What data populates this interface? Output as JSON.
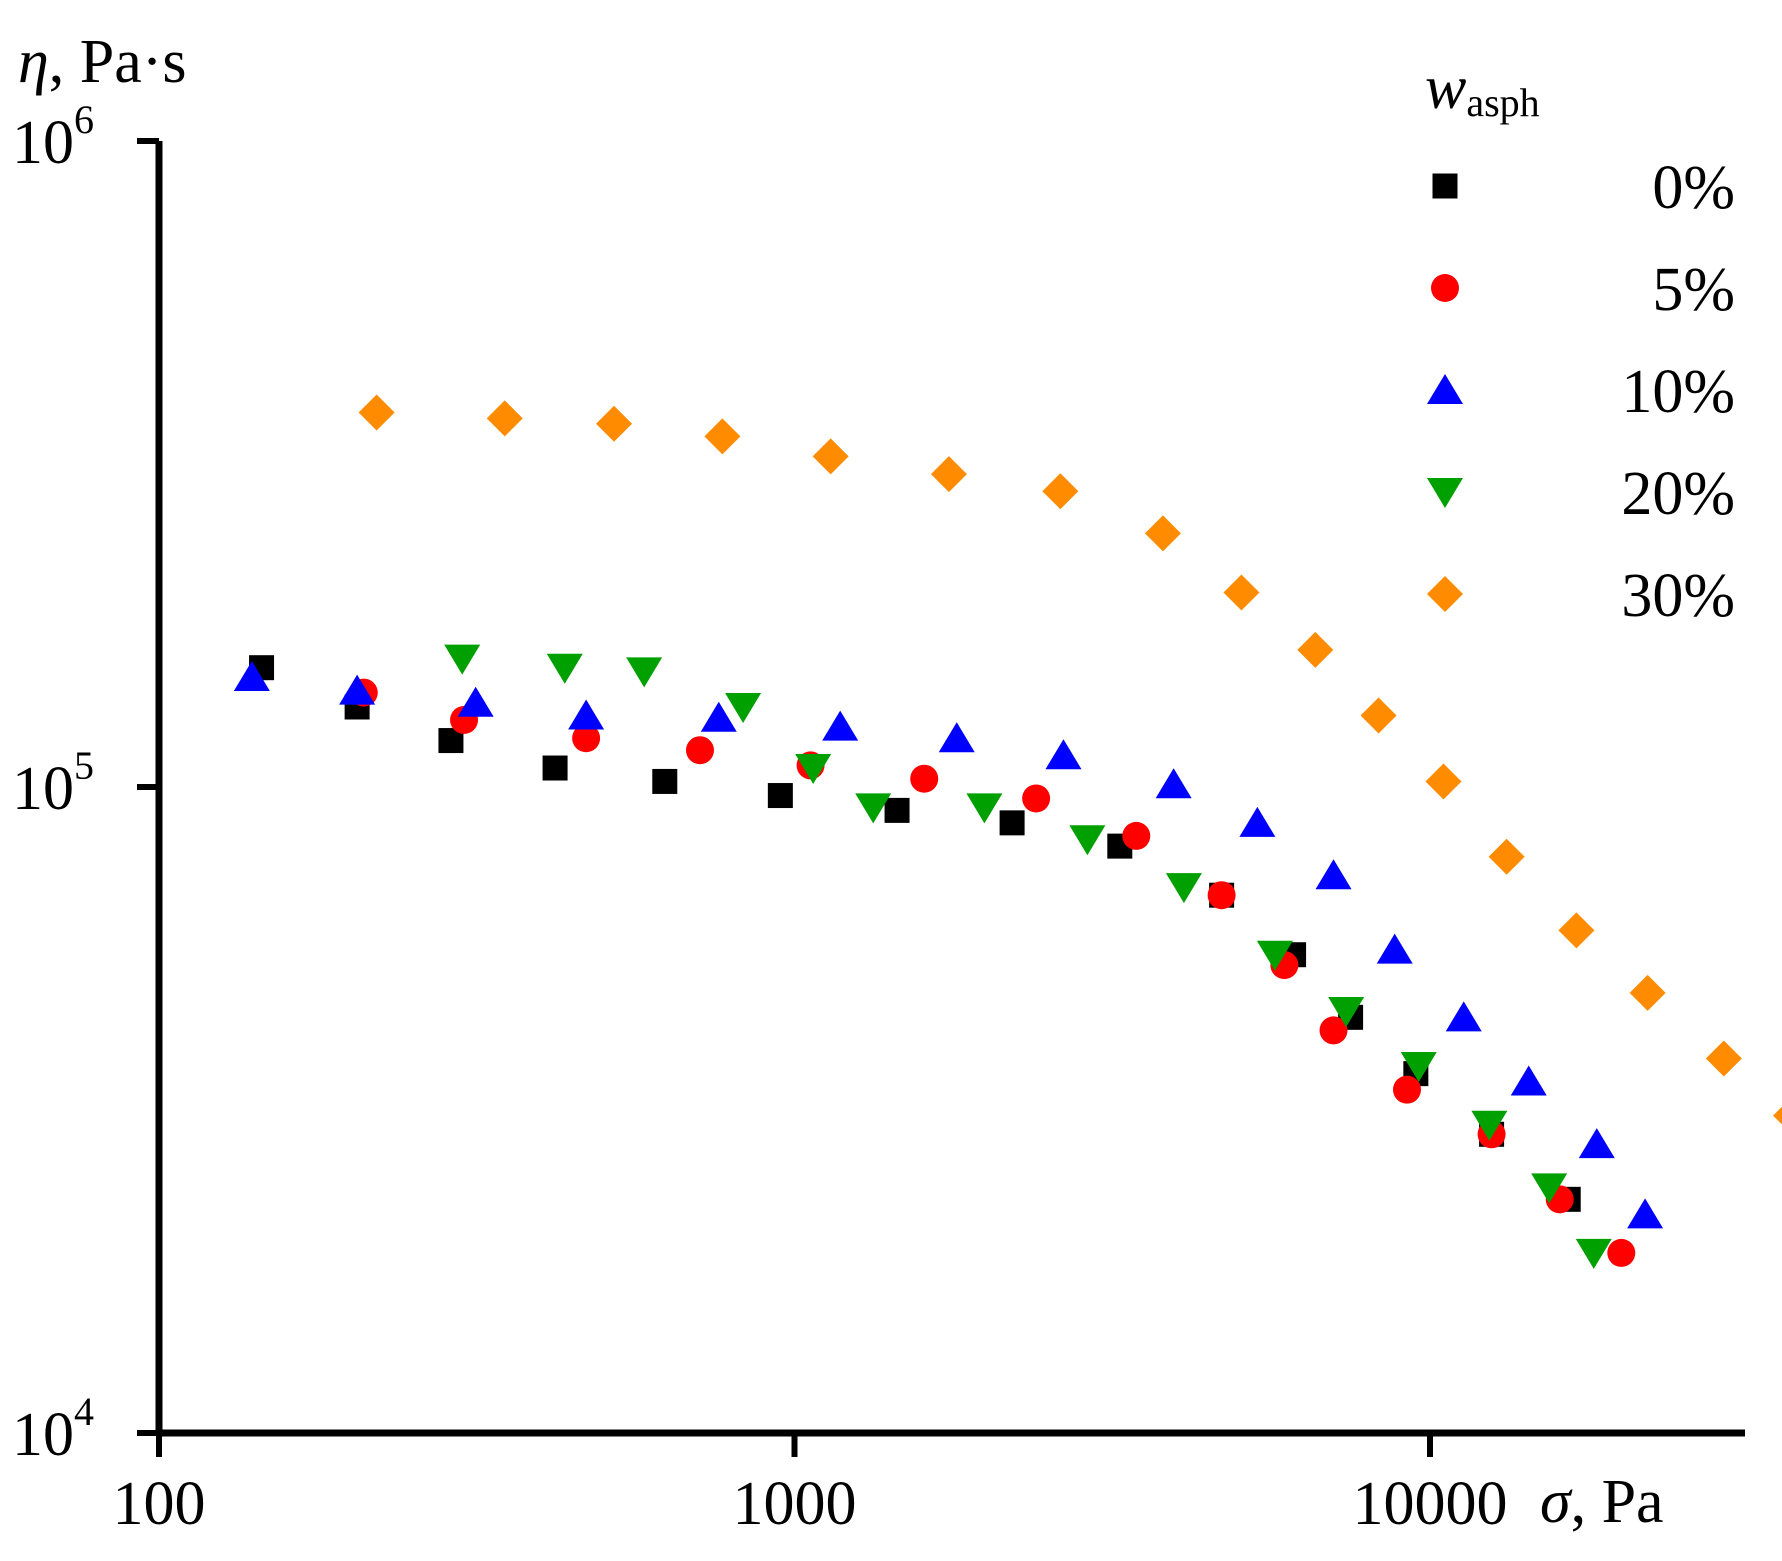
{
  "chart_data": {
    "type": "scatter",
    "x_scale": "log",
    "y_scale": "log",
    "xlim": [
      100,
      40000
    ],
    "ylim": [
      10000,
      1000000
    ],
    "xlabel": {
      "symbol": "σ",
      "unit": ", Pa"
    },
    "ylabel": {
      "symbol": "η",
      "unit": ", Pa·s"
    },
    "x_ticks": [
      {
        "value": 100,
        "label": "100"
      },
      {
        "value": 1000,
        "label": "1000"
      },
      {
        "value": 10000,
        "label": "10000"
      }
    ],
    "y_ticks": [
      {
        "value": 10000,
        "base": "10",
        "exp": "4"
      },
      {
        "value": 100000,
        "base": "10",
        "exp": "5"
      },
      {
        "value": 1000000,
        "base": "10",
        "exp": "6"
      }
    ],
    "legend_title": {
      "main": "w",
      "sub": "asph"
    },
    "legend_position": "top-right",
    "series": [
      {
        "name": "0%",
        "marker": "square",
        "color": "#000000",
        "x": [
          145,
          205,
          288,
          420,
          625,
          950,
          1450,
          2200,
          3250,
          4700,
          6100,
          7500,
          9500,
          12500,
          16500
        ],
        "y": [
          153000,
          133000,
          118000,
          107000,
          102000,
          97000,
          92000,
          88000,
          81000,
          68000,
          55000,
          44000,
          36000,
          29000,
          23000
        ]
      },
      {
        "name": "5%",
        "marker": "circle",
        "color": "#ff0000",
        "x": [
          210,
          302,
          470,
          710,
          1060,
          1600,
          2400,
          3450,
          4700,
          5900,
          7050,
          9200,
          12500,
          16000,
          20000
        ],
        "y": [
          140000,
          127000,
          119000,
          114000,
          108000,
          103000,
          96000,
          84000,
          68000,
          53000,
          42000,
          34000,
          29000,
          23000,
          19000
        ]
      },
      {
        "name": "10%",
        "marker": "triangle-up",
        "color": "#0000ff",
        "x": [
          140,
          205,
          315,
          470,
          760,
          1180,
          1800,
          2650,
          3950,
          5350,
          7050,
          8800,
          11300,
          14300,
          18300,
          21800
        ],
        "y": [
          148000,
          141000,
          135000,
          129000,
          128000,
          124000,
          119000,
          112000,
          101000,
          88000,
          73000,
          56000,
          44000,
          35000,
          28000,
          21800
        ]
      },
      {
        "name": "20%",
        "marker": "triangle-down",
        "color": "#00a000",
        "x": [
          300,
          435,
          580,
          830,
          1070,
          1330,
          1990,
          2890,
          4100,
          5700,
          7380,
          9600,
          12400,
          15400,
          18100
        ],
        "y": [
          158000,
          153000,
          151000,
          133000,
          107000,
          93000,
          93000,
          83000,
          70000,
          55000,
          45000,
          37000,
          30000,
          24000,
          19000
        ]
      },
      {
        "name": "30%",
        "marker": "diamond",
        "color": "#ff8c00",
        "x": [
          220,
          350,
          520,
          770,
          1140,
          1750,
          2620,
          3800,
          5050,
          6600,
          8300,
          10500,
          13200,
          17000,
          22000,
          29000,
          37000
        ],
        "y": [
          380000,
          372000,
          365000,
          349000,
          325000,
          305000,
          287000,
          247000,
          200000,
          163000,
          129000,
          102000,
          78000,
          60000,
          48000,
          38000,
          31000
        ]
      }
    ]
  }
}
